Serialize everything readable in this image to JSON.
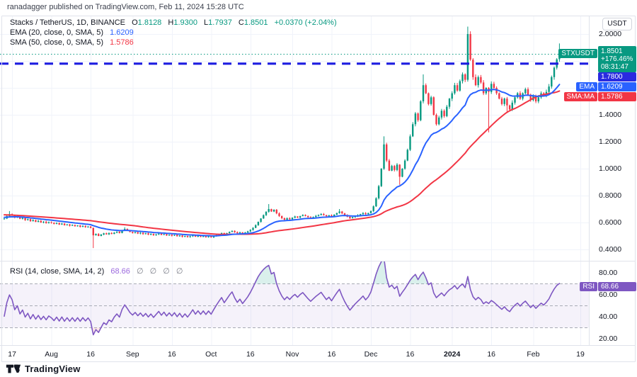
{
  "header": {
    "text": "ranadagger published on TradingView.com, Feb 11, 2024 15:28 UTC"
  },
  "legend": {
    "symbol": "Stacks / TetherUS, 1D, BINANCE",
    "ohlc": [
      {
        "label": "O",
        "value": "1.8128"
      },
      {
        "label": "H",
        "value": "1.9300"
      },
      {
        "label": "L",
        "value": "1.7937"
      },
      {
        "label": "C",
        "value": "1.8501"
      }
    ],
    "change": "+0.0370 (+2.04%)",
    "ema": {
      "name": "EMA (20, close, 0, SMA, 5)",
      "value": "1.6209"
    },
    "sma": {
      "name": "SMA (50, close, 0, SMA, 5)",
      "value": "1.5786"
    },
    "rsi": {
      "name": "RSI (14, close, SMA, 14, 2)",
      "value": "68.66",
      "hidden": "∅ ∅ ∅ ∅"
    }
  },
  "axis": {
    "currency": "USDT"
  },
  "badges": {
    "ticker": "STXUSDT",
    "price": {
      "value": "1.8501",
      "pct": "+176.46%",
      "countdown": "08:31:47"
    },
    "level": {
      "value": "1.7800"
    },
    "ema": {
      "label": "EMA",
      "value": "1.6209"
    },
    "sma": {
      "label": "SMA:MA",
      "value": "1.5786"
    },
    "rsi": {
      "label": "RSI",
      "value": "68.66"
    }
  },
  "footer": {
    "brand": "TradingView"
  },
  "colors": {
    "up": "#089981",
    "down": "#F23645",
    "ema_line": "#2962FF",
    "sma_line": "#F23645",
    "rsi_line": "#7E57C2",
    "level_line": "#1c1ce0",
    "current_price_line": "#089981",
    "grid": "#F0F3FA",
    "border": "#E0E3EB",
    "rsi_dash": "#A8ABB5",
    "rsi_band_fill": "rgba(126,87,194,0.08)",
    "rsi_over_fill": "rgba(8,153,129,0.15)",
    "rsi_under_fill": "rgba(242,54,69,0.12)",
    "ema_badge": "#2962FF",
    "sma_badge": "#F23645",
    "rsi_badge": "#7E57C2",
    "price_badge": "#089981",
    "level_badge": "#2a2ae0"
  },
  "chart_data": {
    "type": "candlestick",
    "symbol": "STXUSDT",
    "exchange": "BINANCE",
    "interval": "1D",
    "price_axis": {
      "range": [
        0.4,
        2.0
      ],
      "ticks": [
        {
          "v": 2.0,
          "t": "2.0000"
        },
        {
          "v": 1.4,
          "t": "1.4000"
        },
        {
          "v": 1.2,
          "t": "1.2000"
        },
        {
          "v": 1.0,
          "t": "1.0000"
        },
        {
          "v": 0.8,
          "t": "0.8000"
        },
        {
          "v": 0.6,
          "t": "0.6000"
        },
        {
          "v": 0.4,
          "t": "0.4000"
        }
      ]
    },
    "rsi_axis": {
      "range": [
        20,
        80
      ],
      "ticks": [
        {
          "v": 80,
          "t": "80.00"
        },
        {
          "v": 60,
          "t": "60.00"
        },
        {
          "v": 40,
          "t": "40.00"
        },
        {
          "v": 20,
          "t": "20.00"
        }
      ],
      "bands": [
        70,
        50,
        30
      ]
    },
    "time_axis": [
      {
        "i": 3,
        "t": "17"
      },
      {
        "i": 18,
        "t": "Aug"
      },
      {
        "i": 33,
        "t": "16"
      },
      {
        "i": 49,
        "t": "Sep"
      },
      {
        "i": 64,
        "t": "16"
      },
      {
        "i": 79,
        "t": "Oct"
      },
      {
        "i": 94,
        "t": "16"
      },
      {
        "i": 110,
        "t": "Nov"
      },
      {
        "i": 125,
        "t": "16"
      },
      {
        "i": 140,
        "t": "Dec"
      },
      {
        "i": 155,
        "t": "16"
      },
      {
        "i": 171,
        "t": "2024",
        "bold": true
      },
      {
        "i": 186,
        "t": "16"
      },
      {
        "i": 202,
        "t": "Feb"
      },
      {
        "i": 220,
        "t": "19"
      }
    ],
    "horizontal_line": 1.78,
    "current_price": 1.8501,
    "last_candle": {
      "o": 1.8128,
      "h": 1.93,
      "l": 1.7937,
      "c": 1.8501
    },
    "indicators": {
      "ema": {
        "period": 20,
        "last": 1.6209
      },
      "sma": {
        "period": 50,
        "last": 1.5786
      },
      "rsi": {
        "period": 14,
        "last": 68.66
      }
    },
    "preroll_closes": [
      0.7,
      0.694,
      0.699,
      0.688,
      0.694,
      0.683,
      0.69,
      0.68,
      0.686,
      0.676,
      0.682,
      0.673,
      0.679,
      0.67,
      0.676,
      0.667,
      0.672,
      0.664,
      0.67,
      0.661,
      0.667,
      0.658,
      0.664,
      0.656,
      0.661,
      0.653,
      0.658,
      0.65,
      0.655,
      0.648,
      0.652,
      0.645,
      0.65,
      0.643,
      0.647,
      0.64,
      0.645,
      0.638,
      0.642,
      0.636,
      0.64,
      0.634,
      0.638,
      0.632,
      0.636,
      0.63,
      0.634,
      0.628,
      0.632,
      0.628
    ],
    "closes": [
      0.63,
      0.648,
      0.662,
      0.655,
      0.638,
      0.645,
      0.628,
      0.635,
      0.618,
      0.625,
      0.61,
      0.618,
      0.605,
      0.612,
      0.6,
      0.606,
      0.596,
      0.603,
      0.598,
      0.59,
      0.596,
      0.585,
      0.592,
      0.58,
      0.586,
      0.576,
      0.582,
      0.572,
      0.578,
      0.568,
      0.574,
      0.565,
      0.57,
      0.56,
      0.505,
      0.515,
      0.5,
      0.51,
      0.52,
      0.512,
      0.522,
      0.515,
      0.525,
      0.532,
      0.522,
      0.54,
      0.552,
      0.542,
      0.53,
      0.522,
      0.528,
      0.518,
      0.524,
      0.514,
      0.52,
      0.51,
      0.516,
      0.506,
      0.512,
      0.518,
      0.508,
      0.514,
      0.504,
      0.51,
      0.502,
      0.508,
      0.498,
      0.504,
      0.494,
      0.5,
      0.492,
      0.498,
      0.505,
      0.495,
      0.501,
      0.493,
      0.499,
      0.491,
      0.497,
      0.49,
      0.498,
      0.506,
      0.514,
      0.522,
      0.513,
      0.521,
      0.53,
      0.538,
      0.528,
      0.52,
      0.527,
      0.519,
      0.526,
      0.534,
      0.545,
      0.56,
      0.58,
      0.605,
      0.63,
      0.655,
      0.68,
      0.7,
      0.682,
      0.695,
      0.668,
      0.648,
      0.632,
      0.62,
      0.632,
      0.624,
      0.636,
      0.645,
      0.637,
      0.648,
      0.656,
      0.648,
      0.64,
      0.633,
      0.641,
      0.649,
      0.656,
      0.663,
      0.655,
      0.647,
      0.654,
      0.646,
      0.658,
      0.67,
      0.682,
      0.668,
      0.655,
      0.643,
      0.632,
      0.64,
      0.648,
      0.655,
      0.662,
      0.67,
      0.662,
      0.67,
      0.685,
      0.72,
      0.78,
      0.87,
      1.0,
      1.18,
      1.06,
      0.985,
      1.02,
      0.99,
      1.03,
      0.94,
      1.0,
      1.06,
      1.14,
      1.24,
      1.33,
      1.41,
      1.36,
      1.5,
      1.62,
      1.56,
      1.48,
      1.53,
      1.4,
      1.33,
      1.38,
      1.43,
      1.39,
      1.46,
      1.52,
      1.56,
      1.62,
      1.58,
      1.65,
      1.7,
      1.66,
      2.0,
      1.81,
      1.68,
      1.62,
      1.68,
      1.64,
      1.56,
      1.6,
      1.57,
      1.63,
      1.6,
      1.56,
      1.52,
      1.48,
      1.52,
      1.47,
      1.44,
      1.49,
      1.53,
      1.56,
      1.52,
      1.56,
      1.59,
      1.55,
      1.51,
      1.54,
      1.5,
      1.53,
      1.56,
      1.54,
      1.57,
      1.61,
      1.68,
      1.75,
      1.812,
      1.8501
    ],
    "special_candles": {
      "2": {
        "h": 0.685
      },
      "34": {
        "l": 0.41
      },
      "46": {
        "h": 0.565
      },
      "101": {
        "h": 0.737
      },
      "128": {
        "h": 0.7
      },
      "145": {
        "h": 1.24
      },
      "151": {
        "l": 0.88
      },
      "160": {
        "h": 1.7
      },
      "177": {
        "h": 2.055
      },
      "178": {
        "h": 2.02
      },
      "185": {
        "l": 1.27
      },
      "192": {
        "l": 1.42
      },
      "212": {
        "o": 1.8128,
        "h": 1.93,
        "l": 1.7937
      }
    }
  }
}
